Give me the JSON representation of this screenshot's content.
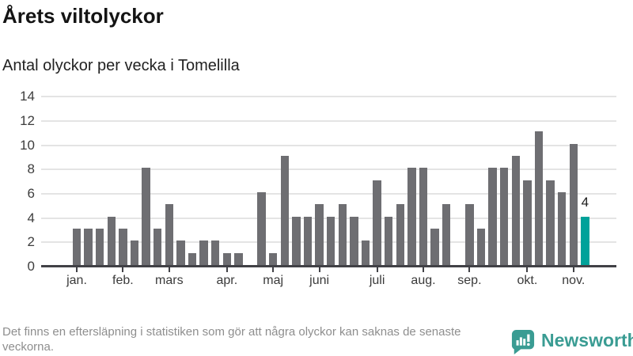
{
  "header": {
    "title": "Årets viltolyckor",
    "subtitle": "Antal olyckor per vecka i Tomelilla"
  },
  "chart_data": {
    "type": "bar",
    "title": "Årets viltolyckor",
    "subtitle": "Antal olyckor per vecka i Tomelilla",
    "x_unit": "week of year (vecka)",
    "first_week": 1,
    "values": [
      3,
      3,
      3,
      4,
      3,
      2,
      8,
      3,
      5,
      2,
      1,
      2,
      2,
      1,
      1,
      null,
      6,
      1,
      9,
      4,
      4,
      5,
      4,
      5,
      4,
      2,
      7,
      4,
      5,
      8,
      8,
      3,
      5,
      null,
      5,
      3,
      8,
      8,
      9,
      7,
      11,
      7,
      6,
      10,
      4
    ],
    "highlight_week": 45,
    "highlight_value_label": "4",
    "ylim": [
      0,
      14
    ],
    "yticks": [
      0,
      2,
      4,
      6,
      8,
      10,
      12,
      14
    ],
    "grid": "horizontal",
    "legend": "none",
    "month_ticks": [
      {
        "label": "jan.",
        "week": 1
      },
      {
        "label": "feb.",
        "week": 5
      },
      {
        "label": "mars",
        "week": 9
      },
      {
        "label": "apr.",
        "week": 14
      },
      {
        "label": "maj",
        "week": 18
      },
      {
        "label": "juni",
        "week": 22
      },
      {
        "label": "juli",
        "week": 27
      },
      {
        "label": "aug.",
        "week": 31
      },
      {
        "label": "sep.",
        "week": 35
      },
      {
        "label": "okt.",
        "week": 40
      },
      {
        "label": "nov.",
        "week": 44
      }
    ]
  },
  "colors": {
    "bar": "#6e6e72",
    "highlight": "#00a29a",
    "gridline": "#e4e4e4",
    "axis": "#414146",
    "brand": "#3a9c93"
  },
  "footer": {
    "note": "Det finns en eftersläpning i statistiken som gör att några olyckor kan saknas de senaste veckorna.",
    "brand": "Newsworthy"
  }
}
